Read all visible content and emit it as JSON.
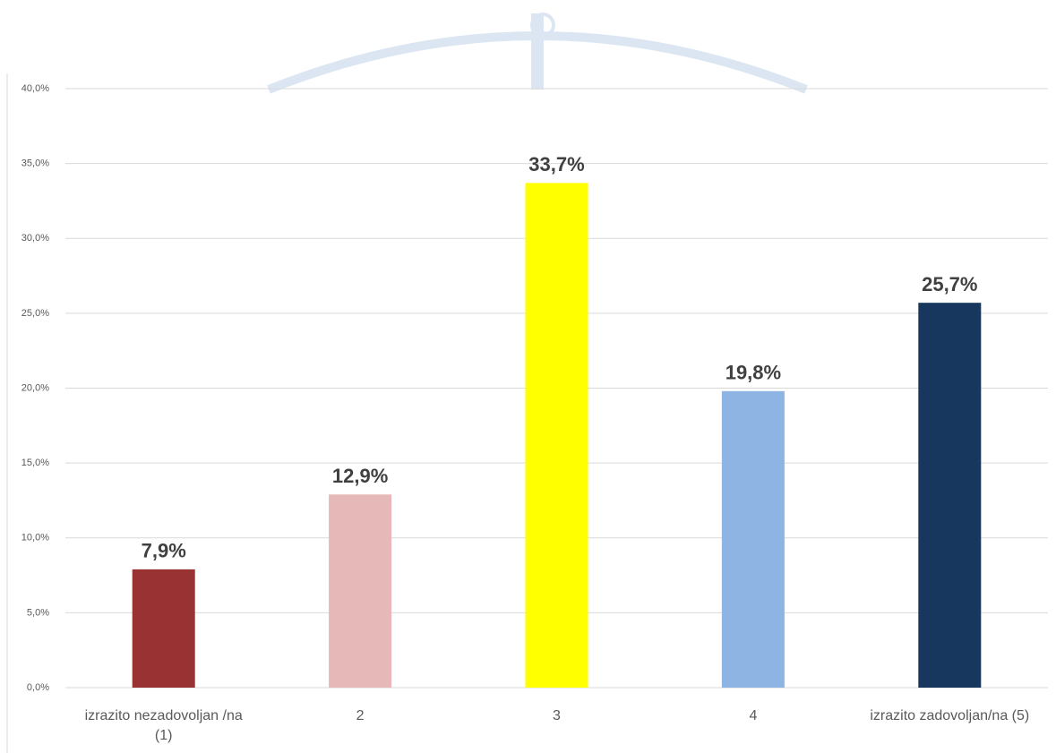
{
  "chart_data": {
    "type": "bar",
    "categories": [
      "izrazito nezadovoljan /na (1)",
      "2",
      "3",
      "4",
      "izrazito zadovoljan/na (5)"
    ],
    "values": [
      7.9,
      12.9,
      33.7,
      19.8,
      25.7
    ],
    "value_labels": [
      "7,9%",
      "12,9%",
      "33,7%",
      "19,8%",
      "25,7%"
    ],
    "colors": [
      "#993333",
      "#e6b8b7",
      "#ffff00",
      "#8eb4e3",
      "#17375e"
    ],
    "ylim": [
      0,
      40
    ],
    "yticks": [
      {
        "value": 0,
        "label": "0,0%"
      },
      {
        "value": 5,
        "label": "5,0%"
      },
      {
        "value": 10,
        "label": "10,0%"
      },
      {
        "value": 15,
        "label": "15,0%"
      },
      {
        "value": 20,
        "label": "20,0%"
      },
      {
        "value": 25,
        "label": "25,0%"
      },
      {
        "value": 30,
        "label": "30,0%"
      },
      {
        "value": 35,
        "label": "35,0%"
      },
      {
        "value": 40,
        "label": "40,0%"
      }
    ],
    "grid": true
  }
}
